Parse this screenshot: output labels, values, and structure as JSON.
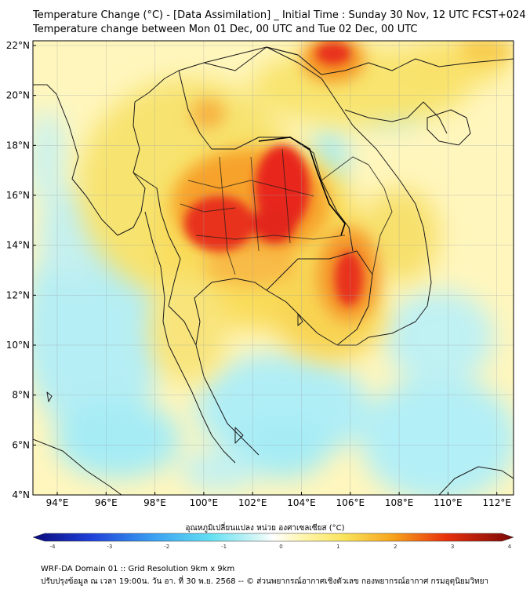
{
  "title": {
    "line1": "Temperature Change (°C) - [Data Assimilation] _ Initial Time : Sunday 30 Nov, 12 UTC FCST+024",
    "line2": "Temperature change between Mon 01 Dec, 00 UTC and Tue 02 Dec, 00 UTC"
  },
  "axes": {
    "lat_labels": [
      "22°N",
      "20°N",
      "18°N",
      "16°N",
      "14°N",
      "12°N",
      "10°N",
      "8°N",
      "6°N",
      "4°N"
    ],
    "lon_labels": [
      "94°E",
      "96°E",
      "98°E",
      "100°E",
      "102°E",
      "104°E",
      "106°E",
      "108°E",
      "110°E",
      "112°E"
    ]
  },
  "colorbar": {
    "title": "อุณหภูมิเปลี่ยนแปลง หน่วย องศาเซลเซียส (°C)",
    "ticks": [
      "-4",
      "-3",
      "-2",
      "-1",
      "0",
      "1",
      "2",
      "3",
      "4"
    ],
    "min": -4,
    "max": 4
  },
  "footer": {
    "line1": "WRF-DA Domain 01 :: Grid Resolution 9km x 9km",
    "line2": "ปรับปรุงข้อมูล ณ เวลา 19:00น. วัน อา. ที่ 30 พ.ย. 2568 -- © ส่วนพยากรณ์อากาศเชิงตัวเลข กองพยากรณ์อากาศ กรมอุตุนิยมวิทยา"
  },
  "colors": {
    "land_base": "#f7e873",
    "sea_base": "#fff3b8",
    "cool": "#a6ecf5",
    "warm": "#f7a21c",
    "hot": "#e8180c",
    "border": "#1a1a1a"
  }
}
